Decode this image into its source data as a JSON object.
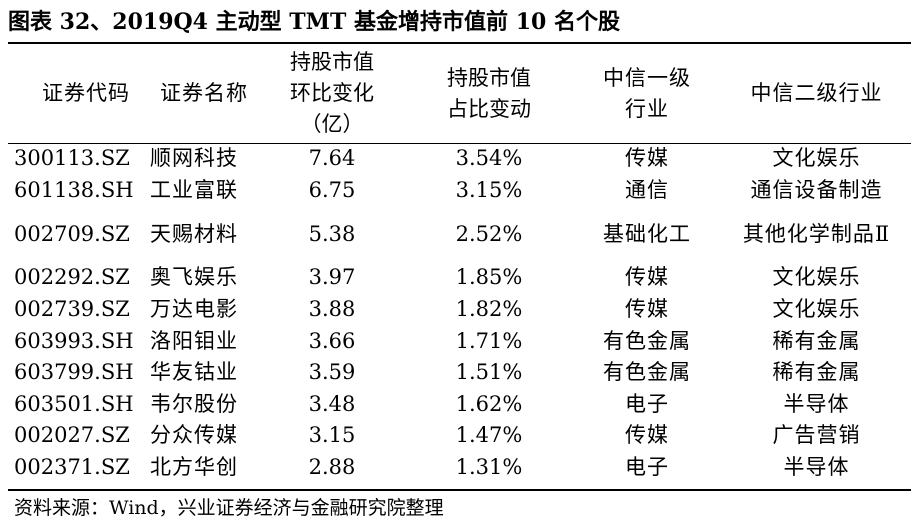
{
  "title": "图表 32、2019Q4 主动型 TMT 基金增持市值前 10 名个股",
  "headers": {
    "code": "证券代码",
    "name": "证券名称",
    "mv_change": [
      "持股市值",
      "环比变化",
      "（亿）"
    ],
    "ratio_change": [
      "持股市值",
      "占比变动"
    ],
    "level1": [
      "中信一级",
      "行业"
    ],
    "level2": "中信二级行业"
  },
  "rows": [
    {
      "code": "300113.SZ",
      "name": "顺网科技",
      "mv_change": "7.64",
      "ratio_change": "3.54%",
      "level1": "传媒",
      "level2": "文化娱乐"
    },
    {
      "code": "601138.SH",
      "name": "工业富联",
      "mv_change": "6.75",
      "ratio_change": "3.15%",
      "level1": "通信",
      "level2": "通信设备制造"
    },
    {
      "code": "002709.SZ",
      "name": "天赐材料",
      "mv_change": "5.38",
      "ratio_change": "2.52%",
      "level1": "基础化工",
      "level2": "其他化学制品Ⅱ"
    },
    {
      "code": "002292.SZ",
      "name": "奥飞娱乐",
      "mv_change": "3.97",
      "ratio_change": "1.85%",
      "level1": "传媒",
      "level2": "文化娱乐"
    },
    {
      "code": "002739.SZ",
      "name": "万达电影",
      "mv_change": "3.88",
      "ratio_change": "1.82%",
      "level1": "传媒",
      "level2": "文化娱乐"
    },
    {
      "code": "603993.SH",
      "name": "洛阳钼业",
      "mv_change": "3.66",
      "ratio_change": "1.71%",
      "level1": "有色金属",
      "level2": "稀有金属"
    },
    {
      "code": "603799.SH",
      "name": "华友钴业",
      "mv_change": "3.59",
      "ratio_change": "1.51%",
      "level1": "有色金属",
      "level2": "稀有金属"
    },
    {
      "code": "603501.SH",
      "name": "韦尔股份",
      "mv_change": "3.48",
      "ratio_change": "1.62%",
      "level1": "电子",
      "level2": "半导体"
    },
    {
      "code": "002027.SZ",
      "name": "分众传媒",
      "mv_change": "3.15",
      "ratio_change": "1.47%",
      "level1": "传媒",
      "level2": "广告营销"
    },
    {
      "code": "002371.SZ",
      "name": "北方华创",
      "mv_change": "2.88",
      "ratio_change": "1.31%",
      "level1": "电子",
      "level2": "半导体"
    }
  ],
  "source": "资料来源：Wind，兴业证券经济与金融研究院整理"
}
